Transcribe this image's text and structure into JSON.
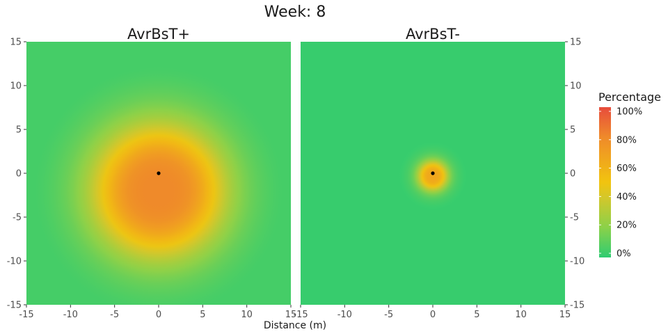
{
  "figure": {
    "title": "Week: 8",
    "xlabel": "Distance (m)"
  },
  "chart_data": [
    {
      "type": "heatmap",
      "title": "AvrBsT+",
      "xlim": [
        -15,
        15
      ],
      "ylim": [
        -15,
        15
      ],
      "x_ticks": [
        -15,
        -10,
        -5,
        0,
        5,
        10,
        15
      ],
      "y_ticks": [
        -15,
        -10,
        -5,
        0,
        5,
        10,
        15
      ],
      "x_tick_labels": [
        "-15",
        "-10",
        "-5",
        "0",
        "5",
        "10",
        "15"
      ],
      "y_tick_labels": [
        "15",
        "10",
        "5",
        "0",
        "-5",
        "-10",
        "-15"
      ],
      "y_axis_side": "left",
      "source_point": [
        0,
        0
      ],
      "percentage_surface": {
        "peak_percent": 80,
        "peak_center": [
          0,
          -2
        ],
        "radius_50_percent": 7,
        "background_percent": 5
      }
    },
    {
      "type": "heatmap",
      "title": "AvrBsT-",
      "xlim": [
        -15,
        15
      ],
      "ylim": [
        -15,
        15
      ],
      "x_ticks": [
        -15,
        -10,
        -5,
        0,
        5,
        10,
        15
      ],
      "y_ticks": [
        -15,
        -10,
        -5,
        0,
        5,
        10,
        15
      ],
      "x_tick_labels": [
        "-15",
        "-10",
        "-5",
        "0",
        "5",
        "10",
        "15"
      ],
      "y_tick_labels": [
        "15",
        "10",
        "5",
        "0",
        "-5",
        "-10",
        "-15"
      ],
      "y_axis_side": "right",
      "source_point": [
        0,
        0
      ],
      "percentage_surface": {
        "peak_percent": 65,
        "peak_center": [
          0,
          -0.3
        ],
        "radius_50_percent": 1.6,
        "background_percent": 0
      }
    }
  ],
  "legend": {
    "title": "Percentage",
    "ticks": [
      100,
      80,
      60,
      40,
      20,
      0
    ],
    "labels": [
      "100%",
      "80%",
      "60%",
      "40%",
      "20%",
      "0%"
    ],
    "color_stops": [
      {
        "percent": 0,
        "color": "#2ecc71"
      },
      {
        "percent": 20,
        "color": "#8bd149"
      },
      {
        "percent": 40,
        "color": "#d4c72a"
      },
      {
        "percent": 50,
        "color": "#f1c40f"
      },
      {
        "percent": 80,
        "color": "#ef8a2a"
      },
      {
        "percent": 100,
        "color": "#e74c3c"
      }
    ]
  },
  "colors": {
    "background_cell": "#2ecc71",
    "source_point": "#000000",
    "tick_text": "#4d4d4d",
    "tick_line": "#333333",
    "title_text": "#1a1a1a"
  }
}
